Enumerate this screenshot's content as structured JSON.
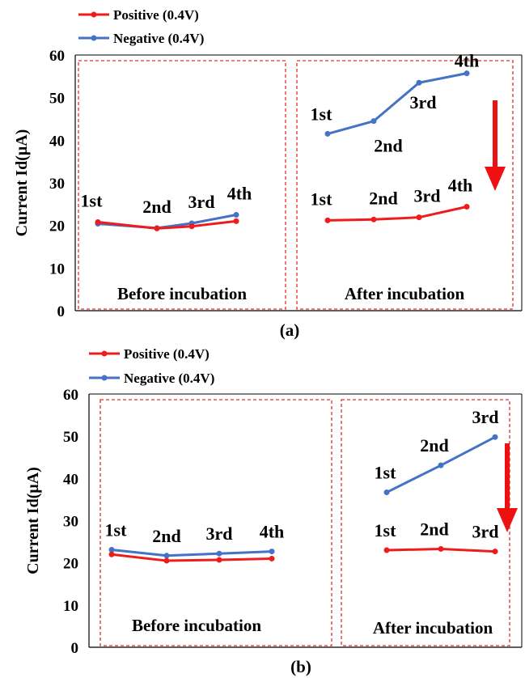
{
  "chart_data": [
    {
      "type": "line",
      "ylabel": "Current Id(μA)",
      "ylim": [
        0,
        60
      ],
      "yticks": [
        "0",
        "10",
        "20",
        "30",
        "40",
        "50",
        "60"
      ],
      "caption": "(a)",
      "legend": [
        "Positive (0.4V)",
        "Negative (0.4V)"
      ],
      "colors": {
        "positive": "#ee1c1c",
        "negative": "#4472c4",
        "box": "#e03030",
        "arrow": "#ee1111"
      },
      "groups": [
        {
          "label": "Before incubation",
          "points": [
            "1st",
            "2nd",
            "3rd",
            "4th"
          ],
          "positive": [
            20.8,
            19.3,
            19.8,
            21.0
          ],
          "negative": [
            20.4,
            19.4,
            20.5,
            22.5
          ]
        },
        {
          "label": "After incubation",
          "points": [
            "1st",
            "2nd",
            "3rd",
            "4th"
          ],
          "positive": [
            21.2,
            21.4,
            21.9,
            24.4
          ],
          "negative": [
            41.5,
            44.5,
            53.5,
            55.7
          ]
        }
      ]
    },
    {
      "type": "line",
      "ylabel": "Current Id(μA)",
      "ylim": [
        0,
        60
      ],
      "yticks": [
        "0",
        "10",
        "20",
        "30",
        "40",
        "50",
        "60"
      ],
      "caption": "(b)",
      "legend": [
        "Positive (0.4V)",
        "Negative (0.4V)"
      ],
      "colors": {
        "positive": "#ee1c1c",
        "negative": "#4472c4",
        "box": "#e03030",
        "arrow": "#ee1111"
      },
      "groups": [
        {
          "label": "Before incubation",
          "points": [
            "1st",
            "2nd",
            "3rd",
            "4th"
          ],
          "positive": [
            22.0,
            20.5,
            20.7,
            21.0
          ],
          "negative": [
            23.1,
            21.7,
            22.2,
            22.7
          ]
        },
        {
          "label": "After incubation",
          "points": [
            "1st",
            "2nd",
            "3rd"
          ],
          "positive": [
            23.0,
            23.3,
            22.7
          ],
          "negative": [
            36.7,
            43.1,
            49.8
          ]
        }
      ]
    }
  ]
}
